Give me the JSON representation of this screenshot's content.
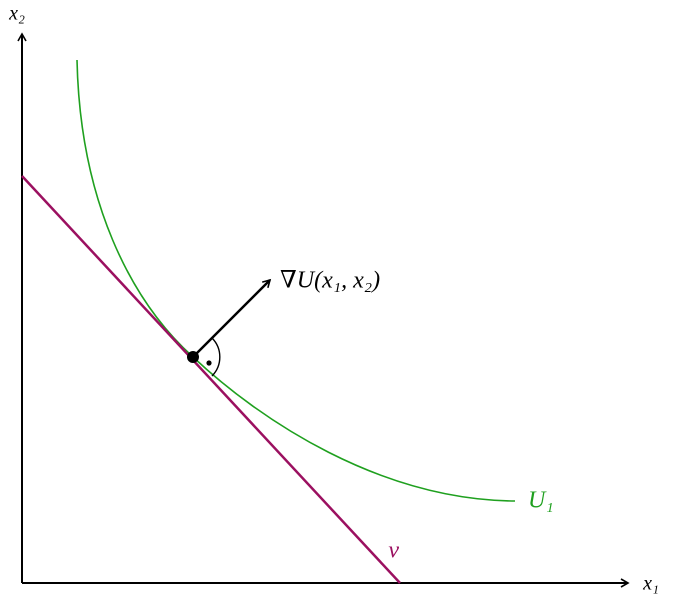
{
  "axes": {
    "y_label": "x₂",
    "x_label": "x₁"
  },
  "labels": {
    "gradient": "∇U(x₁, x₂)",
    "curve": "U₁",
    "vector": "v⃗"
  }
}
